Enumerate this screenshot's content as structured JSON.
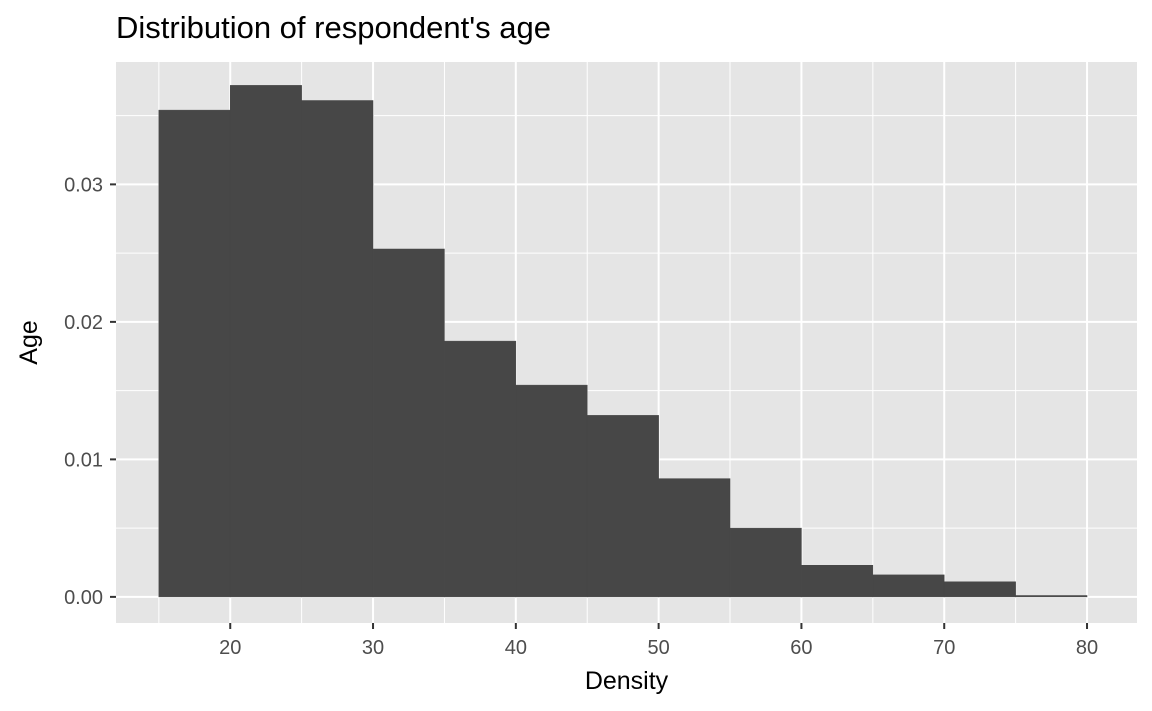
{
  "chart_data": {
    "type": "bar",
    "title": "Distribution of respondent's age",
    "xlabel": "Density",
    "ylabel": "Age",
    "xlim": [
      12,
      83.5
    ],
    "ylim": [
      -0.0019,
      0.0389
    ],
    "x_ticks": [
      20,
      30,
      40,
      50,
      60,
      70,
      80
    ],
    "x_tick_labels": [
      "20",
      "30",
      "40",
      "50",
      "60",
      "70",
      "80"
    ],
    "y_ticks": [
      0,
      0.01,
      0.02,
      0.03
    ],
    "y_tick_labels": [
      "0.00",
      "0.01",
      "0.02",
      "0.03"
    ],
    "grid": true,
    "legend": "none",
    "bins": [
      {
        "x_start": 15,
        "x_end": 20,
        "value": 0.0354
      },
      {
        "x_start": 20,
        "x_end": 25,
        "value": 0.0372
      },
      {
        "x_start": 25,
        "x_end": 30,
        "value": 0.0361
      },
      {
        "x_start": 30,
        "x_end": 35,
        "value": 0.0253
      },
      {
        "x_start": 35,
        "x_end": 40,
        "value": 0.0186
      },
      {
        "x_start": 40,
        "x_end": 45,
        "value": 0.0154
      },
      {
        "x_start": 45,
        "x_end": 50,
        "value": 0.0132
      },
      {
        "x_start": 50,
        "x_end": 55,
        "value": 0.0086
      },
      {
        "x_start": 55,
        "x_end": 60,
        "value": 0.005
      },
      {
        "x_start": 60,
        "x_end": 65,
        "value": 0.0023
      },
      {
        "x_start": 65,
        "x_end": 70,
        "value": 0.0016
      },
      {
        "x_start": 70,
        "x_end": 75,
        "value": 0.0011
      },
      {
        "x_start": 75,
        "x_end": 80,
        "value": 0.0001
      }
    ],
    "colors": {
      "panel": "#e5e5e5",
      "grid_major": "#ffffff",
      "bar": "#474747",
      "tick": "#333333"
    }
  }
}
